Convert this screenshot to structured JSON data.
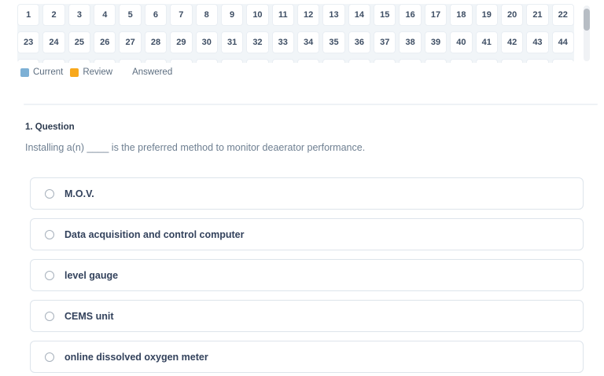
{
  "question_nav": {
    "rows": [
      [
        "1",
        "2",
        "3",
        "4",
        "5",
        "6",
        "7",
        "8",
        "9",
        "10",
        "11",
        "12",
        "13",
        "14",
        "15",
        "16",
        "17",
        "18",
        "19",
        "20",
        "21",
        "22"
      ],
      [
        "23",
        "24",
        "25",
        "26",
        "27",
        "28",
        "29",
        "30",
        "31",
        "32",
        "33",
        "34",
        "35",
        "36",
        "37",
        "38",
        "39",
        "40",
        "41",
        "42",
        "43",
        "44"
      ]
    ],
    "legend": [
      {
        "key": "current",
        "label": "Current",
        "color": "#7db0d5"
      },
      {
        "key": "review",
        "label": "Review",
        "color": "#f8a81c"
      },
      {
        "key": "answered",
        "label": "Answered",
        "color": "#ffffff"
      }
    ]
  },
  "question": {
    "heading": "1. Question",
    "text": "Installing a(n) ____ is the preferred method to monitor deaerator performance.",
    "options": [
      "M.O.V.",
      "Data acquisition and control computer",
      "level gauge",
      "CEMS unit",
      "online dissolved oxygen meter"
    ]
  }
}
